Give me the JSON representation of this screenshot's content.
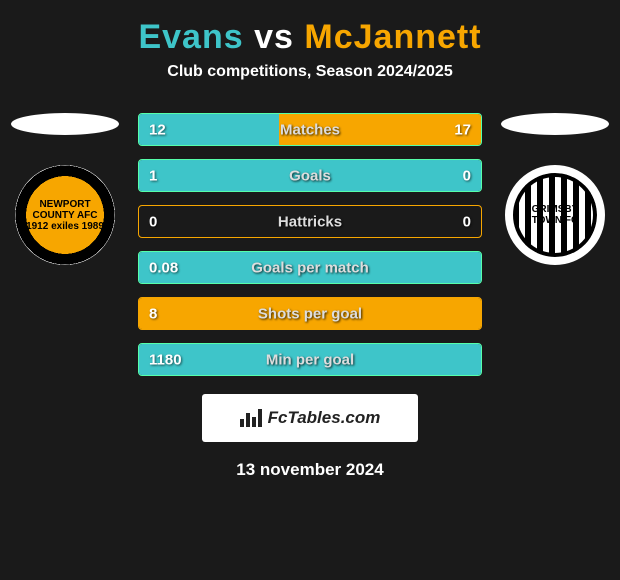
{
  "title": {
    "player1": "Evans",
    "vs": "vs",
    "player2": "McJannett",
    "color1": "#3ec5c9",
    "color_vs": "#ffffff",
    "color2": "#f7a600"
  },
  "subtitle": "Club competitions, Season 2024/2025",
  "background_color": "#1a1a1a",
  "crest_left_label": "NEWPORT COUNTY AFC 1912 exiles 1989",
  "crest_right_label": "GRIMSBY TOWN FC",
  "bars": [
    {
      "label": "Matches",
      "left_val": "12",
      "right_val": "17",
      "left_pct": 41,
      "right_pct": 59,
      "color_left": "#3ec5c9",
      "color_right": "#f7a600",
      "border": "#5fa"
    },
    {
      "label": "Goals",
      "left_val": "1",
      "right_val": "0",
      "left_pct": 100,
      "right_pct": 0,
      "color_left": "#3ec5c9",
      "color_right": "#f7a600",
      "border": "#5fa"
    },
    {
      "label": "Hattricks",
      "left_val": "0",
      "right_val": "0",
      "left_pct": 0,
      "right_pct": 0,
      "color_left": "#3ec5c9",
      "color_right": "#f7a600",
      "border": "#f7a600"
    },
    {
      "label": "Goals per match",
      "left_val": "0.08",
      "right_val": "",
      "left_pct": 100,
      "right_pct": 0,
      "color_left": "#3ec5c9",
      "color_right": "#f7a600",
      "border": "#5fa"
    },
    {
      "label": "Shots per goal",
      "left_val": "8",
      "right_val": "",
      "left_pct": 100,
      "right_pct": 0,
      "color_left": "#f7a600",
      "color_right": "#f7a600",
      "border": "#f7a600"
    },
    {
      "label": "Min per goal",
      "left_val": "1180",
      "right_val": "",
      "left_pct": 100,
      "right_pct": 0,
      "color_left": "#3ec5c9",
      "color_right": "#f7a600",
      "border": "#5fa"
    }
  ],
  "badge_text": "FcTables.com",
  "date": "13 november 2024"
}
